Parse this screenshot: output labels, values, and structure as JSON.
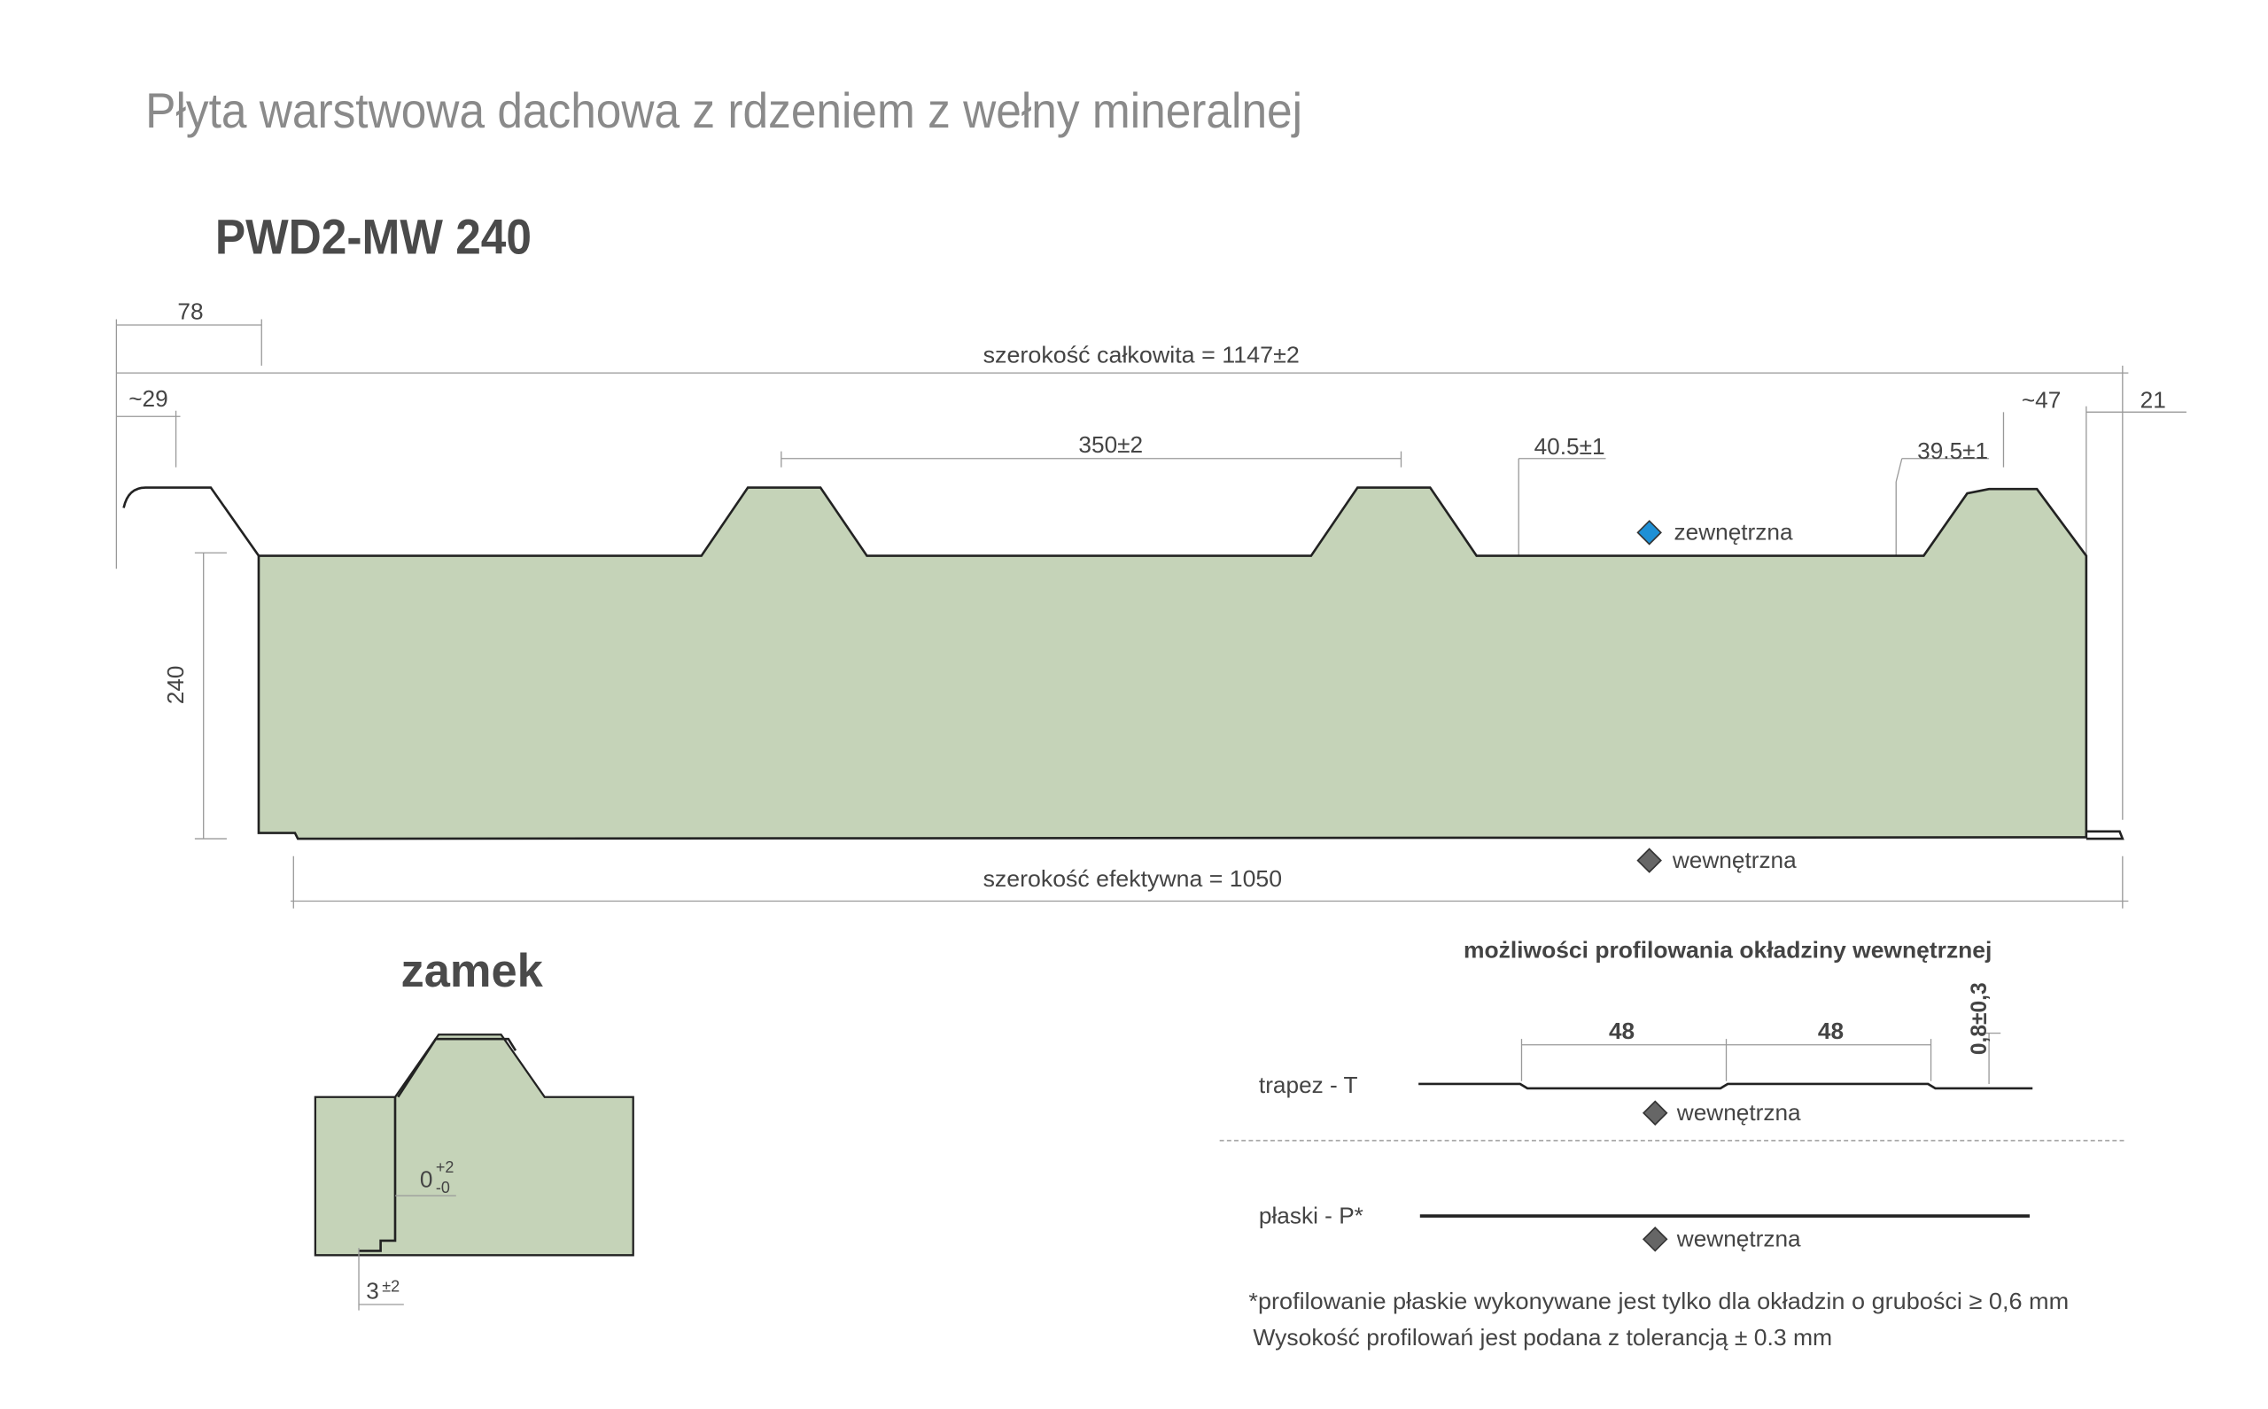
{
  "header": {
    "title": "Płyta warstwowa dachowa z rdzeniem z wełny mineralnej",
    "product": "PWD2-MW 240"
  },
  "panel": {
    "dim_lock_width": "78",
    "total_width": "szerokość całkowita = 1147±2",
    "dim_left_edge": "~29",
    "rib_spacing": "350±2",
    "rib_a": "40.5±1",
    "rib_b": "39.5±1",
    "dim_right_rib": "~47",
    "dim_right_edge": "21",
    "height": "240",
    "outer_label": "zewnętrzna",
    "inner_label": "wewnętrzna",
    "effective_width": "szerokość efektywna = 1050"
  },
  "lock": {
    "title": "zamek",
    "gap": "0",
    "gap_plus": "+2",
    "gap_minus": "-0",
    "offset": "3",
    "offset_tol": "±2"
  },
  "profiling": {
    "title": "możliwości profilowania okładziny wewnętrznej",
    "pitch_1": "48",
    "pitch_2": "48",
    "depth": "0,8±0,3",
    "trapez_label": "trapez - T",
    "trapez_side": "wewnętrzna",
    "flat_label": "płaski - P*",
    "flat_side": "wewnętrzna"
  },
  "footnotes": [
    "*profilowanie płaskie wykonywane jest tylko dla okładzin o grubości ≥ 0,6 mm",
    "Wysokość profilowań jest podana z tolerancją ± 0.3 mm"
  ]
}
